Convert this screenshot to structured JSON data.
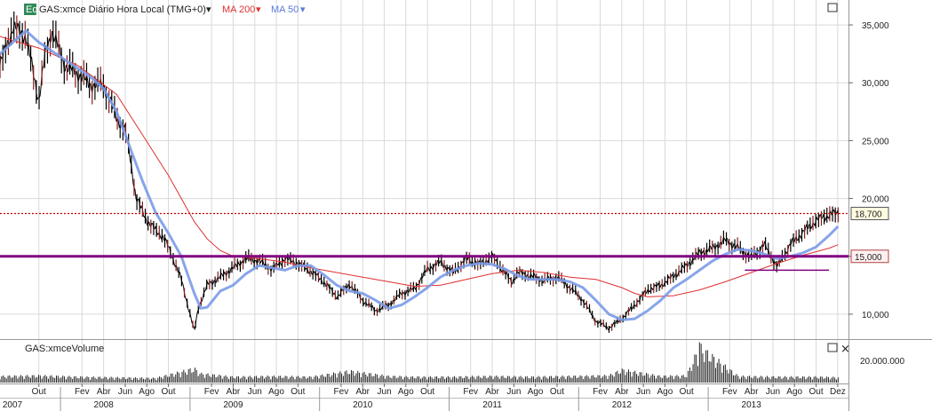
{
  "header": {
    "badge": "Eq",
    "instrument": "GAS:xmce Diário Hora Local (TMG+0)",
    "ma200_label": "MA 200",
    "ma50_label": "MA 50",
    "arrow": "▾"
  },
  "volume_panel": {
    "title": "GAS:xmceVolume",
    "axis_tick": "20.000.000",
    "close_symbol": "×"
  },
  "colors": {
    "price": "#000000",
    "ma200": "#e03030",
    "ma50": "#7b9be8",
    "support": "#800080",
    "dotted": "#c00000",
    "axis_text": "#222222"
  },
  "chart_data": {
    "type": "line",
    "y_axis": {
      "ylim": [
        8000,
        37000
      ],
      "ticks": [
        "10,000",
        "15,000",
        "20,000",
        "25,000",
        "30,000",
        "35,000"
      ],
      "tick_values": [
        10000,
        15000,
        20000,
        25000,
        30000,
        35000
      ]
    },
    "x_axis": {
      "months": [
        "Out",
        "Fev",
        "Abr",
        "Jun",
        "Ago",
        "Out",
        "Fev",
        "Abr",
        "Jun",
        "Ago",
        "Out",
        "Fev",
        "Abr",
        "Jun",
        "Ago",
        "Out",
        "Fev",
        "Abr",
        "Jun",
        "Ago",
        "Out",
        "Fev",
        "Abr",
        "Jun",
        "Ago",
        "Out",
        "Fev",
        "Abr",
        "Jun",
        "Ago",
        "Out",
        "Dez"
      ],
      "month_t": [
        0,
        0.333,
        0.5,
        0.667,
        0.833,
        1.0,
        1.333,
        1.5,
        1.667,
        1.833,
        2.0,
        2.333,
        2.5,
        2.667,
        2.833,
        3.0,
        3.333,
        3.5,
        3.667,
        3.833,
        4.0,
        4.333,
        4.5,
        4.667,
        4.833,
        5.0,
        5.333,
        5.5,
        5.667,
        5.833,
        6.0,
        6.167
      ],
      "years": [
        "2007",
        "2008",
        "2009",
        "2010",
        "2011",
        "2012",
        "2013"
      ],
      "year_t": [
        -0.25,
        0.5,
        1.5,
        2.5,
        3.5,
        4.5,
        5.5
      ],
      "year_bounds_t": [
        0.167,
        1.167,
        2.167,
        3.167,
        4.167,
        5.167
      ],
      "t_range": [
        -0.3,
        6.25
      ]
    },
    "price": {
      "name": "GAS:xmce",
      "t": [
        -0.3,
        -0.2,
        -0.1,
        0.0,
        0.05,
        0.1,
        0.2,
        0.3,
        0.4,
        0.5,
        0.6,
        0.66,
        0.7,
        0.75,
        0.85,
        0.95,
        1.0,
        1.1,
        1.2,
        1.23,
        1.3,
        1.4,
        1.5,
        1.6,
        1.7,
        1.8,
        1.9,
        2.0,
        2.1,
        2.2,
        2.3,
        2.4,
        2.5,
        2.6,
        2.7,
        2.8,
        2.9,
        3.0,
        3.1,
        3.2,
        3.3,
        3.4,
        3.5,
        3.6,
        3.65,
        3.7,
        3.8,
        3.9,
        4.0,
        4.1,
        4.2,
        4.3,
        4.4,
        4.5,
        4.6,
        4.7,
        4.8,
        4.9,
        5.0,
        5.1,
        5.2,
        5.3,
        5.4,
        5.5,
        5.6,
        5.7,
        5.8,
        5.9,
        6.0,
        6.1,
        6.17
      ],
      "close": [
        31500,
        34800,
        34000,
        28500,
        32500,
        34500,
        31500,
        30800,
        29800,
        29800,
        27000,
        26000,
        24000,
        20000,
        17800,
        16800,
        15800,
        13000,
        8500,
        10500,
        12500,
        13200,
        14000,
        14800,
        14600,
        13900,
        14800,
        14400,
        13700,
        12800,
        11500,
        12600,
        11200,
        10300,
        10800,
        11800,
        12200,
        13900,
        14500,
        13600,
        14800,
        14300,
        15000,
        13500,
        12800,
        13600,
        13300,
        12900,
        13200,
        12300,
        11200,
        9400,
        8800,
        9600,
        10800,
        12100,
        12500,
        13300,
        14200,
        15300,
        15700,
        16400,
        15700,
        14900,
        16000,
        14100,
        16000,
        17100,
        18100,
        18600,
        18700
      ]
    },
    "ma50": {
      "name": "MA 50",
      "t": [
        -0.3,
        -0.1,
        0.0,
        0.2,
        0.4,
        0.5,
        0.6,
        0.7,
        0.8,
        0.9,
        1.0,
        1.1,
        1.2,
        1.25,
        1.3,
        1.4,
        1.5,
        1.6,
        1.7,
        1.8,
        1.9,
        2.0,
        2.1,
        2.2,
        2.3,
        2.4,
        2.5,
        2.6,
        2.7,
        2.8,
        2.9,
        3.0,
        3.1,
        3.2,
        3.3,
        3.4,
        3.5,
        3.6,
        3.7,
        3.8,
        3.9,
        4.0,
        4.1,
        4.2,
        4.3,
        4.4,
        4.5,
        4.6,
        4.7,
        4.8,
        4.9,
        5.0,
        5.1,
        5.2,
        5.3,
        5.4,
        5.5,
        5.6,
        5.7,
        5.8,
        5.9,
        6.0,
        6.1,
        6.17
      ],
      "values": [
        32500,
        34500,
        33500,
        32000,
        30500,
        29500,
        27500,
        24500,
        21500,
        18800,
        17000,
        15000,
        11800,
        10500,
        10600,
        12000,
        12500,
        13500,
        14200,
        14000,
        13800,
        14200,
        14200,
        13400,
        12500,
        12000,
        11800,
        11200,
        10500,
        10800,
        11500,
        12300,
        13200,
        13800,
        14200,
        14400,
        14300,
        13900,
        13300,
        13000,
        13000,
        13000,
        12800,
        12300,
        11200,
        10000,
        9500,
        9600,
        10300,
        11200,
        12300,
        13000,
        13800,
        14600,
        15200,
        15600,
        15500,
        15200,
        14800,
        15000,
        15300,
        15800,
        16800,
        17600
      ]
    },
    "ma200": {
      "name": "MA 200",
      "t": [
        -0.3,
        0.0,
        0.3,
        0.6,
        0.8,
        1.0,
        1.1,
        1.2,
        1.3,
        1.4,
        1.5,
        1.7,
        1.9,
        2.1,
        2.3,
        2.5,
        2.7,
        2.9,
        3.1,
        3.3,
        3.5,
        3.7,
        3.9,
        4.1,
        4.3,
        4.5,
        4.6,
        4.7,
        4.9,
        5.1,
        5.3,
        5.5,
        5.7,
        5.9,
        6.1,
        6.17
      ],
      "values": [
        34000,
        33000,
        31500,
        29000,
        25500,
        22000,
        20000,
        18000,
        16500,
        15500,
        15000,
        14800,
        14500,
        14000,
        13600,
        13200,
        12800,
        12400,
        12500,
        13000,
        13500,
        13800,
        13600,
        13200,
        13000,
        12300,
        11800,
        11500,
        11600,
        12100,
        12800,
        13600,
        14400,
        15100,
        15700,
        16000
      ]
    },
    "volume": {
      "name": "Volume",
      "t": [
        -0.3,
        0.0,
        0.3,
        0.6,
        0.9,
        1.2,
        1.25,
        1.5,
        1.8,
        2.1,
        2.4,
        2.7,
        2.9,
        3.2,
        3.5,
        3.8,
        4.1,
        4.4,
        4.5,
        4.8,
        5.0,
        5.1,
        5.4,
        5.7,
        6.0,
        6.17
      ],
      "values": [
        5000000,
        5500000,
        4500000,
        4000000,
        3500000,
        11000000,
        7000000,
        4500000,
        5000000,
        4500000,
        9000000,
        5000000,
        4500000,
        4500000,
        5000000,
        4500000,
        5000000,
        5500000,
        10000000,
        5000000,
        5500000,
        28000000,
        5000000,
        4500000,
        4500000,
        4000000
      ]
    },
    "support_level": 15000,
    "support2_level": 13800,
    "support2_range_t": [
      5.45,
      6.1
    ],
    "last_price": 18700,
    "last_price_label": "18,700",
    "support_label": "15,000",
    "grid": true
  }
}
